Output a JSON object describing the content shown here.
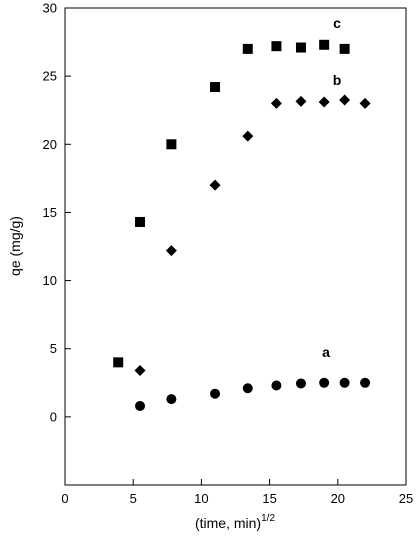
{
  "chart_data": {
    "type": "scatter",
    "title": "",
    "xlabel": "(time, min)",
    "xlabel_superscript": "1/2",
    "ylabel": "qe (mg/g)",
    "xlim": [
      0,
      25
    ],
    "ylim": [
      -5,
      30
    ],
    "xticks": [
      "0",
      "5",
      "10",
      "15",
      "20",
      "25"
    ],
    "yticks": [
      "0",
      "5",
      "10",
      "15",
      "20",
      "25",
      "30"
    ],
    "grid": false,
    "legend": "none",
    "series": [
      {
        "name": "a",
        "marker": "circle",
        "x": [
          5.5,
          7.8,
          11.0,
          13.4,
          15.5,
          17.3,
          19.0,
          20.5,
          22.0
        ],
        "y": [
          0.8,
          1.3,
          1.7,
          2.1,
          2.3,
          2.45,
          2.5,
          2.5,
          2.5
        ]
      },
      {
        "name": "b",
        "marker": "diamond",
        "x": [
          5.5,
          7.8,
          11.0,
          13.4,
          15.5,
          17.3,
          19.0,
          20.5,
          22.0
        ],
        "y": [
          3.4,
          12.2,
          17.0,
          20.6,
          23.0,
          23.15,
          23.1,
          23.25,
          23.0
        ]
      },
      {
        "name": "c",
        "marker": "square",
        "x": [
          3.9,
          5.5,
          7.8,
          11.0,
          13.4,
          15.5,
          17.3,
          19.0,
          20.5
        ],
        "y": [
          4.0,
          14.3,
          20.0,
          24.2,
          27.0,
          27.2,
          27.1,
          27.3,
          27.0
        ]
      }
    ]
  }
}
